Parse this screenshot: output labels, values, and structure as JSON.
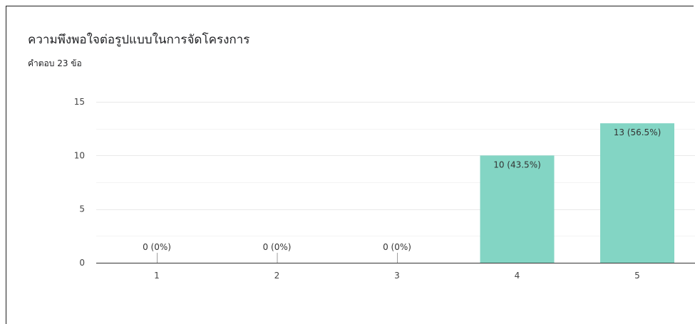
{
  "header": {
    "title": "ความพึงพอใจต่อรูปแบบในการจัดโครงการ",
    "subtitle": "คำตอบ 23 ข้อ"
  },
  "chart_data": {
    "type": "bar",
    "title": "ความพึงพอใจต่อรูปแบบในการจัดโครงการ",
    "subtitle": "คำตอบ 23 ข้อ",
    "categories": [
      "1",
      "2",
      "3",
      "4",
      "5"
    ],
    "values": [
      0,
      0,
      0,
      10,
      13
    ],
    "data_labels": [
      "0 (0%)",
      "0 (0%)",
      "0 (0%)",
      "10 (43.5%)",
      "13 (56.5%)"
    ],
    "ylim": [
      0,
      15
    ],
    "yticks": [
      0,
      5,
      10,
      15
    ],
    "grid": true,
    "legend": "none",
    "bar_color": "#83d5c4",
    "grid_color": "#e9e9e9",
    "axis_color": "#333333"
  }
}
